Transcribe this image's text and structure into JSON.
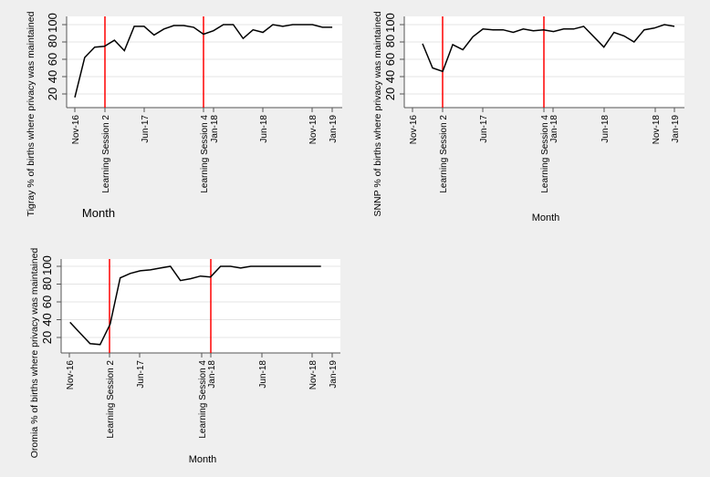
{
  "chart_data": [
    {
      "type": "line",
      "title": "",
      "region": "Tigray",
      "xlabel": "Month",
      "ylabel": "Tigray % of births where privacy was maintained",
      "ylim": [
        0,
        100
      ],
      "yticks": [
        20,
        40,
        60,
        80,
        100
      ],
      "grid": true,
      "xtick_labels": [
        "Nov-16",
        "Learning Session 2",
        "Jun-17",
        "Learning Session 4",
        "Jan-18",
        "Jun-18",
        "Nov-18",
        "Jan-19"
      ],
      "vlines": [
        {
          "label": "Learning Session 2",
          "color": "#ff0000"
        },
        {
          "label": "Learning Session 4",
          "color": "#ff0000"
        }
      ],
      "x": [
        "Nov-16",
        "Dec-16",
        "Jan-17",
        "Feb-17",
        "Mar-17",
        "Apr-17",
        "May-17",
        "Jun-17",
        "Jul-17",
        "Aug-17",
        "Sep-17",
        "Oct-17",
        "Nov-17",
        "Dec-17",
        "Jan-18",
        "Feb-18",
        "Mar-18",
        "Apr-18",
        "May-18",
        "Jun-18",
        "Jul-18",
        "Aug-18",
        "Sep-18",
        "Oct-18",
        "Nov-18",
        "Dec-18",
        "Jan-19"
      ],
      "values": [
        16,
        62,
        74,
        75,
        82,
        70,
        98,
        98,
        88,
        95,
        99,
        99,
        97,
        89,
        93,
        100,
        100,
        84,
        94,
        91,
        100,
        98,
        100,
        100,
        100,
        97,
        97
      ]
    },
    {
      "type": "line",
      "title": "",
      "region": "SNNP",
      "xlabel": "Month",
      "ylabel": "SNNP % of births where privacy was maintained",
      "ylim": [
        0,
        100
      ],
      "yticks": [
        20,
        40,
        60,
        80,
        100
      ],
      "grid": true,
      "xtick_labels": [
        "Nov-16",
        "Learning Session 2",
        "Jun-17",
        "Learning Session 4",
        "Jan-18",
        "Jun-18",
        "Nov-18",
        "Jan-19"
      ],
      "vlines": [
        {
          "label": "Learning Session 2",
          "color": "#ff0000"
        },
        {
          "label": "Learning Session 4",
          "color": "#ff0000"
        }
      ],
      "x": [
        "Dec-16",
        "Jan-17",
        "Feb-17",
        "Mar-17",
        "Apr-17",
        "May-17",
        "Jun-17",
        "Jul-17",
        "Aug-17",
        "Sep-17",
        "Oct-17",
        "Nov-17",
        "Dec-17",
        "Jan-18",
        "Feb-18",
        "Mar-18",
        "Apr-18",
        "May-18",
        "Jun-18",
        "Jul-18",
        "Aug-18",
        "Sep-18",
        "Oct-18",
        "Nov-18",
        "Dec-18",
        "Jan-19"
      ],
      "values": [
        78,
        50,
        46,
        77,
        71,
        86,
        95,
        94,
        94,
        91,
        95,
        93,
        94,
        92,
        95,
        95,
        98,
        86,
        74,
        91,
        87,
        80,
        94,
        96,
        100,
        98
      ]
    },
    {
      "type": "line",
      "title": "",
      "region": "Oromia",
      "xlabel": "Month",
      "ylabel": "Oromia % of births where privacy was maintained",
      "ylim": [
        0,
        100
      ],
      "yticks": [
        20,
        40,
        60,
        80,
        100
      ],
      "grid": true,
      "xtick_labels": [
        "Nov-16",
        "Learning Session 2",
        "Jun-17",
        "Learning Session 4",
        "Jan-18",
        "Jun-18",
        "Nov-18",
        "Jan-19"
      ],
      "vlines": [
        {
          "label": "Learning Session 2",
          "color": "#ff0000"
        },
        {
          "label": "Learning Session 4",
          "color": "#ff0000"
        }
      ],
      "x": [
        "Nov-16",
        "Dec-16",
        "Jan-17",
        "Feb-17",
        "Mar-17",
        "Apr-17",
        "May-17",
        "Jun-17",
        "Jul-17",
        "Aug-17",
        "Sep-17",
        "Oct-17",
        "Nov-17",
        "Dec-17",
        "Jan-18",
        "Feb-18",
        "Mar-18",
        "Apr-18",
        "May-18",
        "Jun-18",
        "Jul-18",
        "Aug-18",
        "Sep-18",
        "Oct-18",
        "Nov-18",
        "Dec-18"
      ],
      "values": [
        37,
        25,
        13,
        12,
        35,
        87,
        92,
        95,
        96,
        98,
        100,
        84,
        86,
        89,
        88,
        100,
        100,
        98,
        100,
        100,
        100,
        100,
        100,
        100,
        100,
        100
      ]
    }
  ],
  "panels": [
    {
      "ylabel": "Tigray % of births where privacy was maintained",
      "xlabel": "Month",
      "yticks": [
        "20",
        "40",
        "60",
        "80",
        "100"
      ],
      "xticks": [
        "Nov-16",
        "Learning Session 2",
        "Jun-17",
        "Learning Session 4",
        "Jan-18",
        "Jun-18",
        "Nov-18",
        "Jan-19"
      ]
    },
    {
      "ylabel": "SNNP % of births where privacy was maintained",
      "xlabel": "Month",
      "yticks": [
        "20",
        "40",
        "60",
        "80",
        "100"
      ],
      "xticks": [
        "Nov-16",
        "Learning Session 2",
        "Jun-17",
        "Learning Session 4",
        "Jan-18",
        "Jun-18",
        "Nov-18",
        "Jan-19"
      ]
    },
    {
      "ylabel": "Oromia % of births where privacy was maintained",
      "xlabel": "Month",
      "yticks": [
        "20",
        "40",
        "60",
        "80",
        "100"
      ],
      "xticks": [
        "Nov-16",
        "Learning Session 2",
        "Jun-17",
        "Learning Session 4",
        "Jan-18",
        "Jun-18",
        "Nov-18",
        "Jan-19"
      ]
    }
  ],
  "colors": {
    "background": "#efefef",
    "plot_bg": "#ffffff",
    "gridline": "#e6e6e6",
    "line": "#000000",
    "session_line": "#ff0000",
    "axis": "#555555"
  }
}
